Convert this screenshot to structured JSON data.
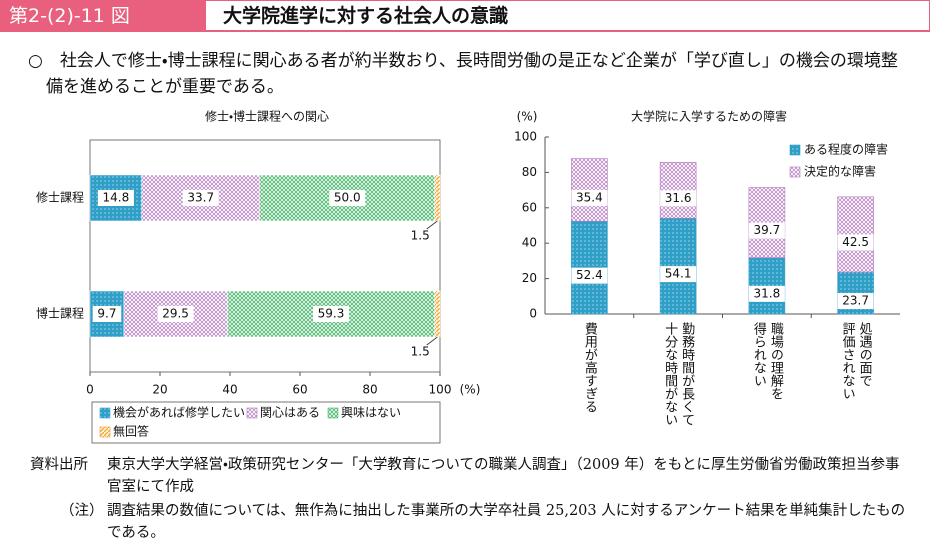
{
  "header": {
    "figure_number": "第2-(2)-11 図",
    "title": "大学院進学に対する社会人の意識"
  },
  "summary": "○　社会人で修士・博士課程に関心ある者が約半数おり、長時間労働の是正など企業が「学び直し」の機会の環境整備を進めることが重要である。",
  "chart_data": [
    {
      "type": "hbar_stacked",
      "title": "修士・博士課程への関心",
      "categories": [
        "修士課程",
        "博士課程"
      ],
      "series": [
        {
          "name": "機会があれば修学したい",
          "color": "#2f9fc8",
          "hatch": "dots",
          "values": [
            14.8,
            9.7
          ]
        },
        {
          "name": "関心はある",
          "color": "#b57ac0",
          "hatch": "cross",
          "values": [
            33.7,
            29.5
          ]
        },
        {
          "name": "興味はない",
          "color": "#4fb872",
          "hatch": "grid",
          "values": [
            50,
            59.3
          ],
          "value_labels": [
            "50.0",
            "59.3"
          ]
        },
        {
          "name": "無回答",
          "color": "#f0a030",
          "hatch": "lines",
          "values": [
            1.5,
            1.5
          ]
        }
      ],
      "xlim": [
        0,
        100
      ],
      "xticks": [
        0,
        20,
        40,
        60,
        80,
        100
      ],
      "x_unit": "(%)",
      "legend": "bottom"
    },
    {
      "type": "bar_stacked",
      "title": "大学院に入学するための障害",
      "y_unit": "(%)",
      "categories": [
        "費用が高すぎる",
        "勤務時間が長くて\n十分な時間がない",
        "職場の理解を\n得られない",
        "処遇の面で\n評価されない"
      ],
      "series": [
        {
          "name": "ある程度の障害",
          "color": "#2f9fc8",
          "hatch": "dots",
          "values": [
            52.4,
            54.1,
            31.8,
            23.7
          ]
        },
        {
          "name": "決定的な障害",
          "color": "#b57ac0",
          "hatch": "cross",
          "values": [
            35.4,
            31.6,
            39.7,
            42.5
          ]
        }
      ],
      "ylim": [
        0,
        100
      ],
      "yticks": [
        0,
        20,
        40,
        60,
        80,
        100
      ],
      "legend": "top-right"
    }
  ],
  "notes": {
    "source_label": "資料出所",
    "source": "東京大学大学経営・政策研究センター「大学教育についての職業人調査」（2009 年）をもとに厚生労働省労働政策担当参事官室にて作成",
    "note_label": "（注）",
    "note": "調査結果の数値については、無作為に抽出した事業所の大学卒社員 25,203 人に対するアンケート結果を単純集計したものである。"
  }
}
